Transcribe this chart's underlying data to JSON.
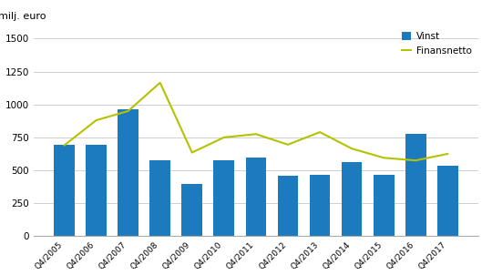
{
  "categories": [
    "Q4/2005",
    "Q4/2006",
    "Q4/2007",
    "Q4/2008",
    "Q4/2009",
    "Q4/2010",
    "Q4/2011",
    "Q4/2012",
    "Q4/2013",
    "Q4/2014",
    "Q4/2015",
    "Q4/2016",
    "Q4/2017"
  ],
  "vinst": [
    695,
    695,
    960,
    575,
    395,
    575,
    600,
    460,
    465,
    560,
    465,
    775,
    535
  ],
  "finansnetto": [
    690,
    880,
    950,
    1165,
    635,
    750,
    775,
    695,
    790,
    665,
    595,
    575,
    625
  ],
  "bar_color": "#1c7bbf",
  "line_color": "#b5c200",
  "ylabel": "milj. euro",
  "ylim": [
    0,
    1600
  ],
  "yticks": [
    0,
    250,
    500,
    750,
    1000,
    1250,
    1500
  ],
  "legend_vinst": "Vinst",
  "legend_finansnetto": "Finansnetto",
  "background_color": "#ffffff",
  "grid_color": "#d0d0d0"
}
